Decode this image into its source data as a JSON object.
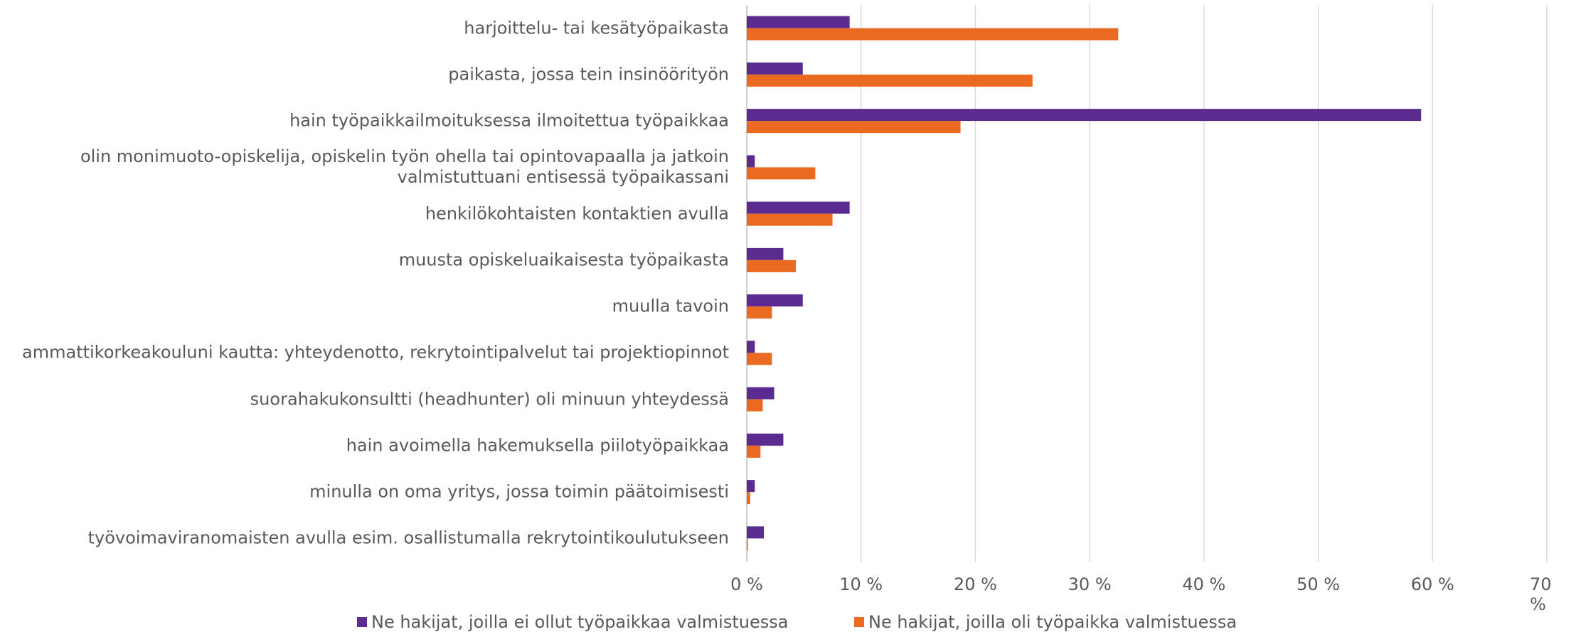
{
  "chart_data": {
    "type": "hbar",
    "categories": [
      "harjoittelu- tai kesätyöpaikasta",
      "paikasta, jossa tein insinöörityön",
      "hain työpaikkailmoituksessa ilmoitettua työpaikkaa",
      "olin monimuoto-opiskelija, opiskelin työn ohella tai opintovapaalla ja jatkoin\nvalmistuttuani entisessä työpaikassani",
      "henkilökohtaisten kontaktien avulla",
      "muusta opiskeluaikaisesta työpaikasta",
      "muulla tavoin",
      "ammattikorkeakouluni kautta: yhteydenotto, rekrytointipalvelut tai projektiopinnot",
      "suorahakukonsultti (headhunter) oli minuun yhteydessä",
      "hain avoimella hakemuksella piilotyöpaikkaa",
      "minulla on oma yritys, jossa toimin päätoimisesti",
      "työvoimaviranomaisten avulla esim. osallistumalla rekrytointikoulutukseen"
    ],
    "series": [
      {
        "name": "Ne hakijat, joilla ei ollut työpaikkaa valmistuessa",
        "color": "#5b2c8f",
        "values": [
          9.0,
          4.9,
          59.0,
          0.7,
          9.0,
          3.2,
          4.9,
          0.7,
          2.4,
          3.2,
          0.7,
          1.5
        ]
      },
      {
        "name": "Ne hakijat, joilla oli työpaikka valmistuessa",
        "color": "#ea6a21",
        "values": [
          32.5,
          25.0,
          18.7,
          6.0,
          7.5,
          4.3,
          2.2,
          2.2,
          1.4,
          1.2,
          0.3,
          0.1
        ]
      }
    ],
    "xlim": [
      0,
      70
    ],
    "xticks": [
      {
        "value": 0,
        "label": "0 %"
      },
      {
        "value": 10,
        "label": "10 %"
      },
      {
        "value": 20,
        "label": "20 %"
      },
      {
        "value": 30,
        "label": "30 %"
      },
      {
        "value": 40,
        "label": "40 %"
      },
      {
        "value": 50,
        "label": "50 %"
      },
      {
        "value": 60,
        "label": "60 %"
      },
      {
        "value": 70,
        "label": "70 %"
      }
    ],
    "grid": true,
    "legend": "bottom"
  }
}
